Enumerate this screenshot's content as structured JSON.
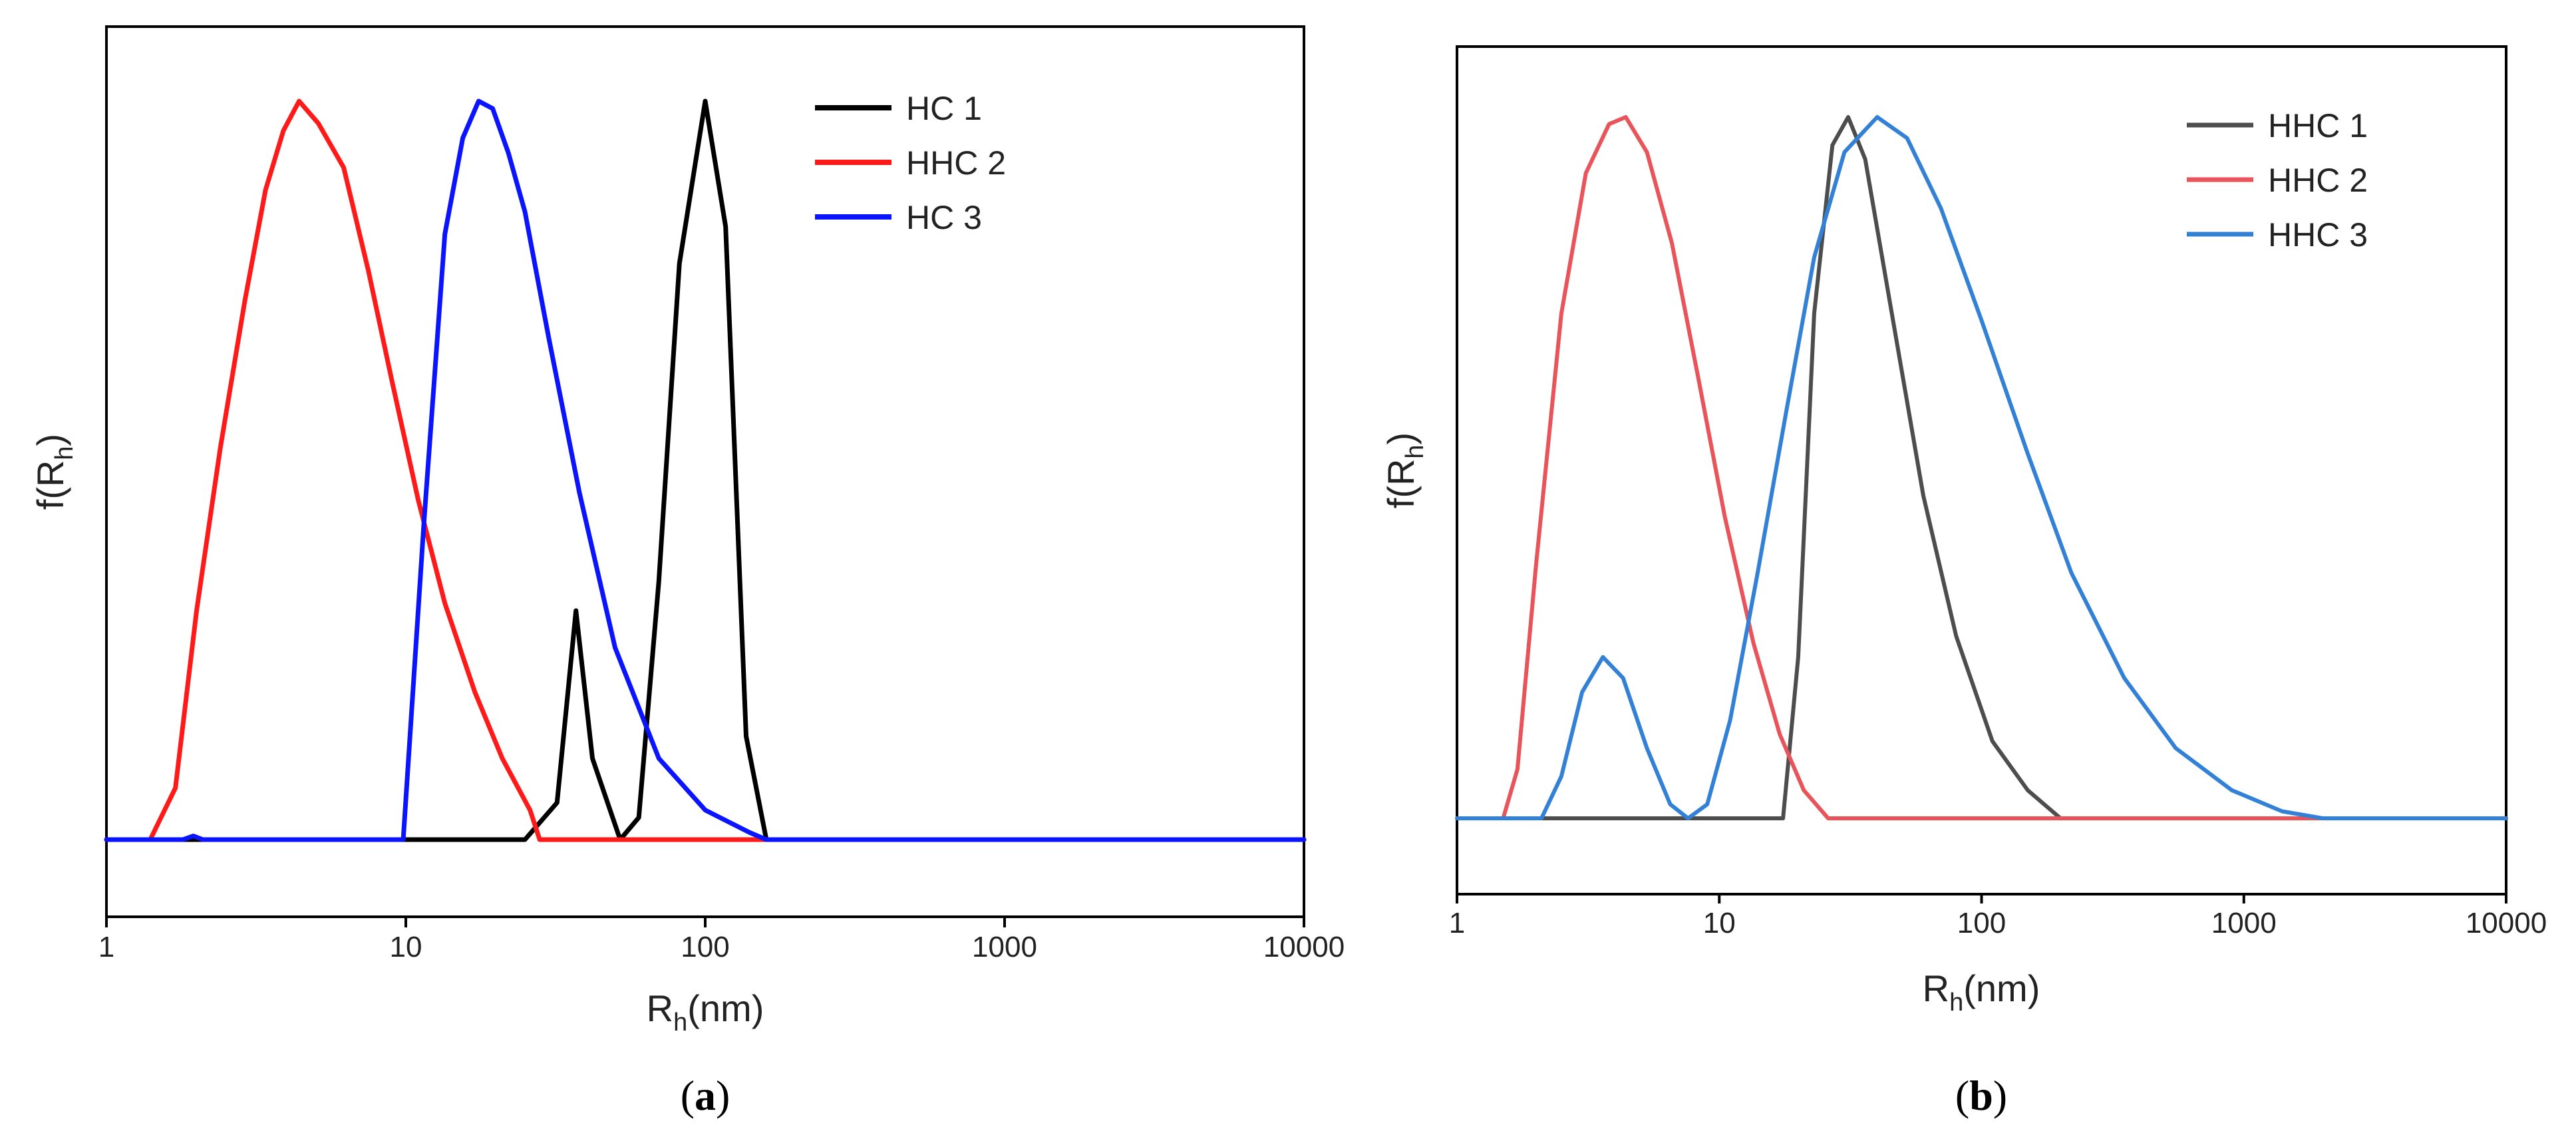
{
  "chart_data": [
    {
      "type": "line",
      "panel_label": "a",
      "xlabel": {
        "main": "R",
        "sub": "h",
        "tail": "(nm)"
      },
      "ylabel": {
        "main": "f(R",
        "sub": "h",
        "tail": ")"
      },
      "xscale": "log",
      "xlim": [
        1,
        10000
      ],
      "ylim": [
        0,
        1.1
      ],
      "yticks": "none",
      "xticks": [
        1,
        10,
        100,
        1000,
        10000
      ],
      "xtick_labels": [
        "1",
        "10",
        "100",
        "1000",
        "10000"
      ],
      "legend_position": "top-right",
      "series": [
        {
          "name": "HC 1",
          "color": "#000000",
          "points": [
            [
              1,
              0
            ],
            [
              10,
              0
            ],
            [
              25,
              0
            ],
            [
              32,
              0.05
            ],
            [
              37,
              0.31
            ],
            [
              42,
              0.11
            ],
            [
              52,
              0
            ],
            [
              60,
              0.03
            ],
            [
              70,
              0.35
            ],
            [
              82,
              0.78
            ],
            [
              100,
              1.0
            ],
            [
              117,
              0.83
            ],
            [
              137,
              0.14
            ],
            [
              160,
              0
            ],
            [
              1000,
              0
            ],
            [
              10000,
              0
            ]
          ]
        },
        {
          "name": "HHC 2",
          "color": "#ff1a1a",
          "points": [
            [
              1,
              0
            ],
            [
              1.4,
              0
            ],
            [
              1.7,
              0.07
            ],
            [
              2.0,
              0.31
            ],
            [
              2.4,
              0.53
            ],
            [
              2.9,
              0.73
            ],
            [
              3.4,
              0.88
            ],
            [
              3.9,
              0.96
            ],
            [
              4.4,
              1.0
            ],
            [
              5.1,
              0.97
            ],
            [
              6.2,
              0.91
            ],
            [
              7.5,
              0.77
            ],
            [
              9.0,
              0.62
            ],
            [
              11,
              0.46
            ],
            [
              13.5,
              0.32
            ],
            [
              17,
              0.2
            ],
            [
              21,
              0.11
            ],
            [
              26,
              0.04
            ],
            [
              28,
              0
            ],
            [
              100,
              0
            ],
            [
              10000,
              0
            ]
          ]
        },
        {
          "name": "HC 3",
          "color": "#0a14ff",
          "points": [
            [
              1,
              0
            ],
            [
              1.8,
              0
            ],
            [
              1.95,
              0.005
            ],
            [
              2.1,
              0
            ],
            [
              9.8,
              0
            ],
            [
              11.5,
              0.43
            ],
            [
              13.5,
              0.82
            ],
            [
              15.5,
              0.95
            ],
            [
              17.5,
              1.0
            ],
            [
              19.5,
              0.99
            ],
            [
              22,
              0.93
            ],
            [
              25,
              0.85
            ],
            [
              30,
              0.68
            ],
            [
              38,
              0.47
            ],
            [
              50,
              0.26
            ],
            [
              70,
              0.11
            ],
            [
              100,
              0.04
            ],
            [
              140,
              0.01
            ],
            [
              160,
              0
            ],
            [
              10000,
              0
            ]
          ]
        }
      ]
    },
    {
      "type": "line",
      "panel_label": "b",
      "xlabel": {
        "main": "R",
        "sub": "h",
        "tail": "(nm)"
      },
      "ylabel": {
        "main": "f(R",
        "sub": "h",
        "tail": ")"
      },
      "xscale": "log",
      "xlim": [
        1,
        10000
      ],
      "ylim": [
        0,
        1.1
      ],
      "yticks": "none",
      "xticks": [
        1,
        10,
        100,
        1000,
        10000
      ],
      "xtick_labels": [
        "1",
        "10",
        "100",
        "1000",
        "10000"
      ],
      "legend_position": "top-right",
      "series": [
        {
          "name": "HHC 1",
          "color": "#4d4d4d",
          "points": [
            [
              1,
              0
            ],
            [
              10,
              0
            ],
            [
              17.5,
              0
            ],
            [
              20,
              0.23
            ],
            [
              23,
              0.72
            ],
            [
              27,
              0.96
            ],
            [
              31,
              1.0
            ],
            [
              36,
              0.94
            ],
            [
              45,
              0.73
            ],
            [
              60,
              0.46
            ],
            [
              80,
              0.26
            ],
            [
              110,
              0.11
            ],
            [
              150,
              0.04
            ],
            [
              200,
              0
            ],
            [
              1000,
              0
            ],
            [
              10000,
              0
            ]
          ]
        },
        {
          "name": "HHC 2",
          "color": "#e8545a",
          "points": [
            [
              1,
              0
            ],
            [
              1.5,
              0
            ],
            [
              1.7,
              0.07
            ],
            [
              2.0,
              0.36
            ],
            [
              2.5,
              0.72
            ],
            [
              3.1,
              0.92
            ],
            [
              3.8,
              0.99
            ],
            [
              4.4,
              1.0
            ],
            [
              5.3,
              0.95
            ],
            [
              6.6,
              0.82
            ],
            [
              8.3,
              0.63
            ],
            [
              10.5,
              0.43
            ],
            [
              13.5,
              0.25
            ],
            [
              17,
              0.12
            ],
            [
              21,
              0.04
            ],
            [
              26,
              0
            ],
            [
              100,
              0
            ],
            [
              10000,
              0
            ]
          ]
        },
        {
          "name": "HHC 3",
          "color": "#3381d6",
          "points": [
            [
              1,
              0
            ],
            [
              2.1,
              0
            ],
            [
              2.5,
              0.06
            ],
            [
              3.0,
              0.18
            ],
            [
              3.6,
              0.23
            ],
            [
              4.3,
              0.2
            ],
            [
              5.3,
              0.1
            ],
            [
              6.5,
              0.02
            ],
            [
              7.6,
              0
            ],
            [
              9,
              0.02
            ],
            [
              11,
              0.14
            ],
            [
              14,
              0.35
            ],
            [
              18,
              0.58
            ],
            [
              23,
              0.8
            ],
            [
              30,
              0.95
            ],
            [
              40,
              1.0
            ],
            [
              52,
              0.97
            ],
            [
              70,
              0.87
            ],
            [
              100,
              0.71
            ],
            [
              150,
              0.52
            ],
            [
              220,
              0.35
            ],
            [
              350,
              0.2
            ],
            [
              550,
              0.1
            ],
            [
              900,
              0.04
            ],
            [
              1400,
              0.01
            ],
            [
              2000,
              0
            ],
            [
              10000,
              0
            ]
          ]
        }
      ]
    }
  ]
}
